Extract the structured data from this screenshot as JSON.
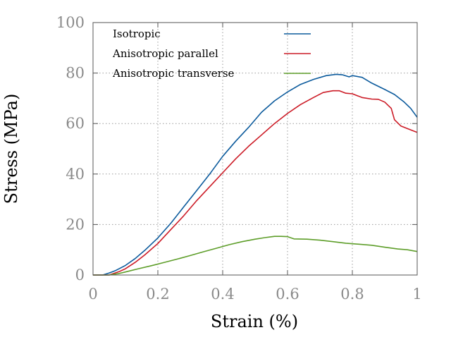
{
  "chart_data": {
    "type": "line",
    "title": "",
    "xlabel": "Strain (%)",
    "ylabel": "Stress (MPa)",
    "xlim": [
      0,
      1
    ],
    "ylim": [
      0,
      100
    ],
    "xticks": [
      0,
      0.2,
      0.4,
      0.6,
      0.8,
      1
    ],
    "xtick_labels": [
      "0",
      "0.2",
      "0.4",
      "0.6",
      "0.8",
      "1"
    ],
    "yticks": [
      0,
      20,
      40,
      60,
      80,
      100
    ],
    "ytick_labels": [
      "0",
      "20",
      "40",
      "60",
      "80",
      "100"
    ],
    "grid": true,
    "legend_position": "top",
    "series": [
      {
        "name": "Isotropic",
        "color": "#0b5a9c",
        "points": [
          [
            0.0,
            0
          ],
          [
            0.03,
            0
          ],
          [
            0.05,
            0.8
          ],
          [
            0.07,
            1.8
          ],
          [
            0.1,
            3.8
          ],
          [
            0.13,
            6.5
          ],
          [
            0.16,
            9.8
          ],
          [
            0.2,
            14.7
          ],
          [
            0.24,
            20.5
          ],
          [
            0.28,
            27
          ],
          [
            0.32,
            33.5
          ],
          [
            0.36,
            40
          ],
          [
            0.4,
            47
          ],
          [
            0.44,
            53
          ],
          [
            0.48,
            58.5
          ],
          [
            0.52,
            64.5
          ],
          [
            0.56,
            69
          ],
          [
            0.6,
            72.5
          ],
          [
            0.64,
            75.5
          ],
          [
            0.68,
            77.5
          ],
          [
            0.72,
            79
          ],
          [
            0.75,
            79.5
          ],
          [
            0.77,
            79.3
          ],
          [
            0.79,
            78.5
          ],
          [
            0.8,
            79
          ],
          [
            0.83,
            78.3
          ],
          [
            0.86,
            76
          ],
          [
            0.9,
            73.5
          ],
          [
            0.93,
            71.5
          ],
          [
            0.96,
            68.5
          ],
          [
            0.98,
            66
          ],
          [
            1.0,
            62.5
          ]
        ]
      },
      {
        "name": "Anisotropic parallel",
        "color": "#cc1b26",
        "points": [
          [
            0.0,
            0
          ],
          [
            0.05,
            0
          ],
          [
            0.08,
            1.3
          ],
          [
            0.1,
            2.5
          ],
          [
            0.13,
            5
          ],
          [
            0.16,
            8
          ],
          [
            0.2,
            12.5
          ],
          [
            0.24,
            18
          ],
          [
            0.28,
            23.5
          ],
          [
            0.32,
            29.5
          ],
          [
            0.36,
            35
          ],
          [
            0.4,
            40.5
          ],
          [
            0.44,
            46
          ],
          [
            0.48,
            51
          ],
          [
            0.52,
            55.5
          ],
          [
            0.56,
            60
          ],
          [
            0.6,
            64
          ],
          [
            0.64,
            67.5
          ],
          [
            0.68,
            70.3
          ],
          [
            0.71,
            72.3
          ],
          [
            0.74,
            73
          ],
          [
            0.76,
            73
          ],
          [
            0.78,
            72
          ],
          [
            0.8,
            71.8
          ],
          [
            0.83,
            70.3
          ],
          [
            0.86,
            69.7
          ],
          [
            0.88,
            69.6
          ],
          [
            0.9,
            68.5
          ],
          [
            0.92,
            66
          ],
          [
            0.93,
            61.5
          ],
          [
            0.95,
            59
          ],
          [
            0.97,
            58
          ],
          [
            1.0,
            56.5
          ]
        ]
      },
      {
        "name": "Anisotropic transverse",
        "color": "#5e9e2a",
        "points": [
          [
            0.0,
            0
          ],
          [
            0.05,
            0
          ],
          [
            0.08,
            0.6
          ],
          [
            0.1,
            1.2
          ],
          [
            0.14,
            2.5
          ],
          [
            0.18,
            3.7
          ],
          [
            0.22,
            5
          ],
          [
            0.26,
            6.3
          ],
          [
            0.3,
            7.7
          ],
          [
            0.34,
            9.2
          ],
          [
            0.38,
            10.6
          ],
          [
            0.42,
            12
          ],
          [
            0.46,
            13.2
          ],
          [
            0.5,
            14.2
          ],
          [
            0.53,
            14.8
          ],
          [
            0.56,
            15.3
          ],
          [
            0.58,
            15.3
          ],
          [
            0.6,
            15.2
          ],
          [
            0.62,
            14.3
          ],
          [
            0.66,
            14.2
          ],
          [
            0.7,
            13.8
          ],
          [
            0.74,
            13.2
          ],
          [
            0.78,
            12.6
          ],
          [
            0.82,
            12.2
          ],
          [
            0.86,
            11.8
          ],
          [
            0.9,
            11
          ],
          [
            0.94,
            10.3
          ],
          [
            0.97,
            10
          ],
          [
            1.0,
            9.3
          ]
        ]
      }
    ]
  }
}
